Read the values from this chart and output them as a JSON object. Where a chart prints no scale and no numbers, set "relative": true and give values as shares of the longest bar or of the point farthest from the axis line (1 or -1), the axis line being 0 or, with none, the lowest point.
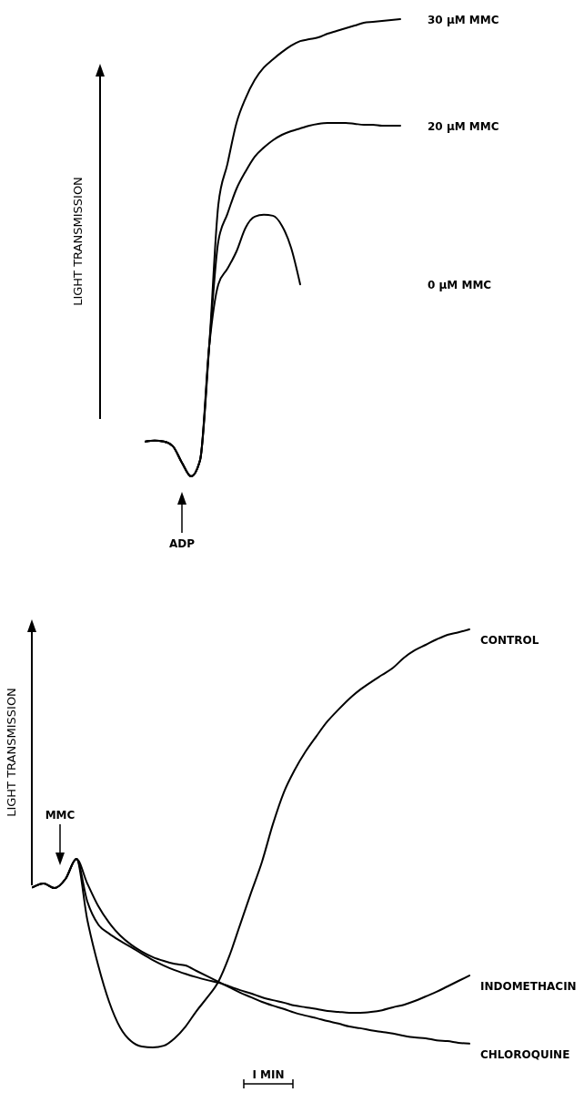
{
  "chart_data": [
    {
      "type": "line",
      "relative": true,
      "ylabel": "LIGHT TRANSMISSION",
      "annotations": [
        "ADP"
      ],
      "categories": [
        null,
        null,
        null,
        null,
        null,
        null,
        null,
        null,
        null,
        null,
        null,
        null,
        null,
        null,
        null,
        null,
        null,
        null,
        null,
        null,
        null,
        null,
        null,
        null,
        null,
        null,
        null,
        null,
        null
      ],
      "series": [
        {
          "name": "30 µM MMC",
          "color": "#000000",
          "values": [
            0.076,
            0.078,
            0.076,
            0.066,
            0.03,
            0,
            0.036,
            0.285,
            0.594,
            0.683,
            0.773,
            0.827,
            0.867,
            0.894,
            0.912,
            0.928,
            0.942,
            0.952,
            0.956,
            0.96,
            0.968,
            0.974,
            0.98,
            0.986,
            0.992,
            0.994,
            0.996,
            0.998,
            1
          ]
        },
        {
          "name": "20 µM MMC",
          "color": "#000000",
          "values": [
            0.076,
            0.078,
            0.076,
            0.066,
            0.03,
            0,
            0.036,
            0.285,
            0.514,
            0.574,
            0.629,
            0.667,
            0.699,
            0.719,
            0.735,
            0.747,
            0.755,
            0.761,
            0.767,
            0.771,
            0.773,
            0.773,
            0.773,
            0.771,
            0.769,
            0.769,
            0.767,
            0.767,
            0.767
          ]
        },
        {
          "name": "0 µM MMC",
          "color": "#000000",
          "values": [
            0.076,
            0.078,
            0.076,
            0.066,
            0.03,
            0,
            0.036,
            0.285,
            0.42,
            0.454,
            0.492,
            0.544,
            0.568,
            0.572,
            0.57,
            0.548,
            0.5,
            0.42,
            null,
            null,
            null,
            null,
            null,
            null,
            null,
            null,
            null,
            null,
            null
          ]
        }
      ]
    },
    {
      "type": "line",
      "relative": true,
      "ylabel": "LIGHT TRANSMISSION",
      "annotations": [
        "MMC",
        "I MIN"
      ],
      "categories": [
        null,
        null,
        null,
        null,
        null,
        null,
        null,
        null,
        null,
        null,
        null,
        null,
        null,
        null,
        null,
        null,
        null,
        null,
        null,
        null,
        null,
        null,
        null,
        null,
        null,
        null,
        null,
        null,
        null,
        null,
        null,
        null,
        null,
        null,
        null,
        null,
        null,
        null,
        null,
        null,
        null
      ],
      "series": [
        {
          "name": "CONTROL",
          "color": "#000000",
          "values": [
            0.383,
            0.392,
            0.381,
            0.403,
            0.451,
            0.305,
            0.196,
            0.109,
            0.048,
            0.015,
            0.002,
            0,
            0.004,
            0.022,
            0.05,
            0.087,
            0.12,
            0.157,
            0.218,
            0.294,
            0.37,
            0.444,
            0.534,
            0.61,
            0.664,
            0.708,
            0.745,
            0.78,
            0.808,
            0.834,
            0.856,
            0.874,
            0.891,
            0.908,
            0.932,
            0.95,
            0.963,
            0.976,
            0.987,
            0.993,
            1
          ]
        },
        {
          "name": "INDOMETHACIN",
          "color": "#000000",
          "values": [
            0.383,
            0.392,
            0.381,
            0.403,
            0.451,
            0.349,
            0.294,
            0.272,
            0.255,
            0.24,
            0.224,
            0.209,
            0.196,
            0.185,
            0.176,
            0.168,
            0.161,
            0.155,
            0.146,
            0.137,
            0.129,
            0.12,
            0.113,
            0.107,
            0.1,
            0.096,
            0.092,
            0.087,
            0.085,
            0.083,
            0.083,
            0.085,
            0.089,
            0.096,
            0.102,
            0.111,
            0.122,
            0.133,
            0.146,
            0.159,
            0.172
          ]
        },
        {
          "name": "CHLOROQUINE",
          "color": "#000000",
          "values": [
            0.383,
            0.392,
            0.381,
            0.403,
            0.451,
            0.392,
            0.338,
            0.298,
            0.268,
            0.246,
            0.229,
            0.216,
            0.207,
            0.2,
            0.196,
            0.183,
            0.17,
            0.157,
            0.144,
            0.131,
            0.12,
            0.109,
            0.1,
            0.092,
            0.083,
            0.076,
            0.07,
            0.063,
            0.057,
            0.05,
            0.046,
            0.041,
            0.037,
            0.033,
            0.028,
            0.024,
            0.022,
            0.017,
            0.015,
            0.011,
            0.009
          ]
        }
      ]
    }
  ]
}
